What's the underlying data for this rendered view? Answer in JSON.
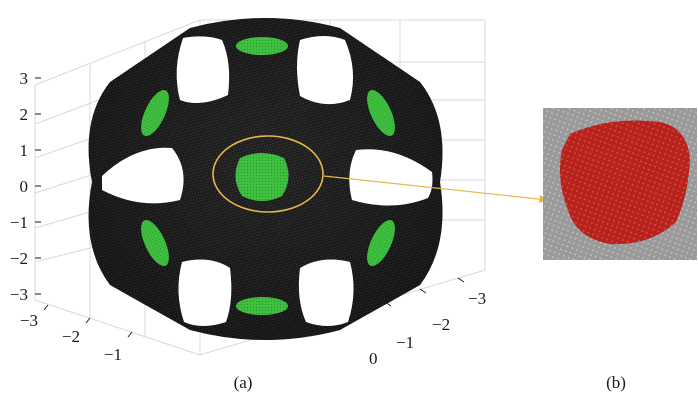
{
  "figure": {
    "panel_a": {
      "caption": "(a)",
      "z_ticks": [
        "3",
        "2",
        "1",
        "0",
        "−1",
        "−2",
        "−3"
      ],
      "x_ticks": [
        "−3",
        "−2",
        "−1"
      ],
      "y_ticks": [
        "−3",
        "−2",
        "−1",
        "0"
      ]
    },
    "panel_b": {
      "caption": "(b)"
    },
    "colors": {
      "body": "#1c1c1c",
      "mesh_line": "#4a4a4a",
      "patch_green": "#3fbf3f",
      "highlight_circle": "#e6b84a",
      "arrow": "#e6b84a",
      "zoom_background": "#9a9a9a",
      "zoom_patch_red": "#b8221c",
      "grid": "#d9d9d9"
    }
  }
}
